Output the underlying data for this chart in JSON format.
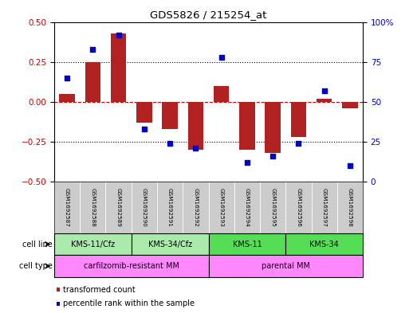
{
  "title": "GDS5826 / 215254_at",
  "samples": [
    "GSM1692587",
    "GSM1692588",
    "GSM1692589",
    "GSM1692590",
    "GSM1692591",
    "GSM1692592",
    "GSM1692593",
    "GSM1692594",
    "GSM1692595",
    "GSM1692596",
    "GSM1692597",
    "GSM1692598"
  ],
  "transformed_count": [
    0.05,
    0.25,
    0.43,
    -0.13,
    -0.17,
    -0.3,
    0.1,
    -0.3,
    -0.32,
    -0.22,
    0.02,
    -0.04
  ],
  "percentile_rank": [
    65,
    83,
    92,
    33,
    24,
    21,
    78,
    12,
    16,
    24,
    57,
    10
  ],
  "ylim_left": [
    -0.5,
    0.5
  ],
  "ylim_right": [
    0,
    100
  ],
  "yticks_left": [
    -0.5,
    -0.25,
    0.0,
    0.25,
    0.5
  ],
  "yticks_right": [
    0,
    25,
    50,
    75,
    100
  ],
  "bar_color": "#b22222",
  "scatter_color": "#0000cd",
  "hline_color": "#cc0000",
  "dotted_line_color": "#000000",
  "cell_line_groups": [
    {
      "label": "KMS-11/Cfz",
      "start": 0,
      "end": 3,
      "color": "#aaeaaa"
    },
    {
      "label": "KMS-34/Cfz",
      "start": 3,
      "end": 6,
      "color": "#aaeaaa"
    },
    {
      "label": "KMS-11",
      "start": 6,
      "end": 9,
      "color": "#55dd55"
    },
    {
      "label": "KMS-34",
      "start": 9,
      "end": 12,
      "color": "#55dd55"
    }
  ],
  "cell_type_groups": [
    {
      "label": "carfilzomib-resistant MM",
      "start": 0,
      "end": 6,
      "color": "#ff88ff"
    },
    {
      "label": "parental MM",
      "start": 6,
      "end": 12,
      "color": "#ff88ff"
    }
  ],
  "cell_line_label": "cell line",
  "cell_type_label": "cell type",
  "legend_bar_label": "transformed count",
  "legend_scatter_label": "percentile rank within the sample",
  "bg_color": "#ffffff",
  "plot_bg_color": "#ffffff",
  "tick_label_color_left": "#cc0000",
  "tick_label_color_right": "#0000cd",
  "sample_bg_color": "#cccccc",
  "sample_border_color": "#ffffff"
}
